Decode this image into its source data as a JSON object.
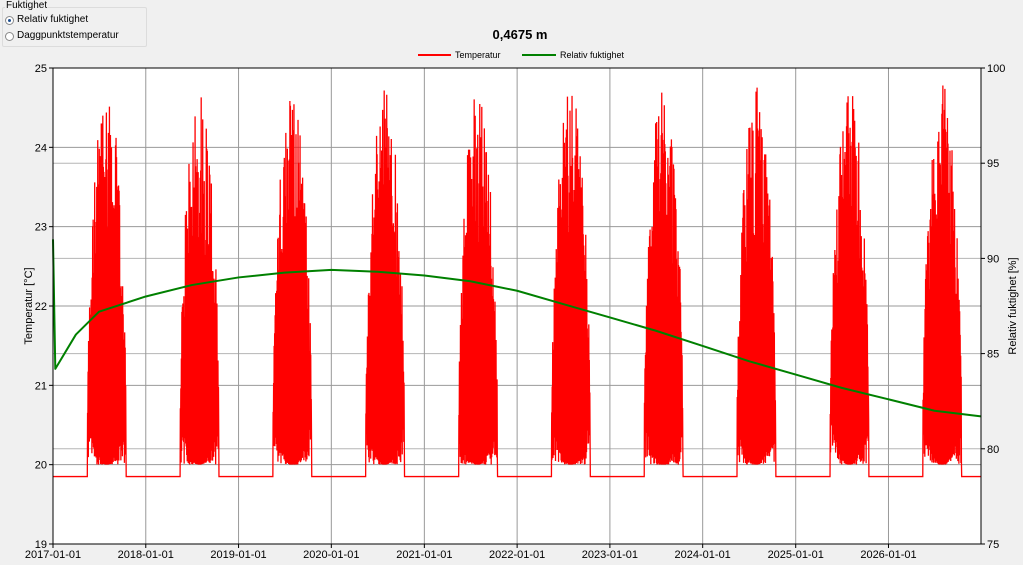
{
  "panel": {
    "group_title": "Fuktighet",
    "options": [
      {
        "label": "Relativ fuktighet",
        "selected": true
      },
      {
        "label": "Daggpunktstemperatur",
        "selected": false
      }
    ]
  },
  "chart_data": {
    "type": "line",
    "title": "0,4675 m",
    "legend": [
      "Temperatur",
      "Relativ fuktighet"
    ],
    "legend_placement": "top-center",
    "grid": true,
    "x_ticks": [
      "2017-01-01",
      "2018-01-01",
      "2019-01-01",
      "2020-01-01",
      "2021-01-01",
      "2022-01-01",
      "2023-01-01",
      "2024-01-01",
      "2025-01-01",
      "2026-01-01"
    ],
    "x_range": [
      "2017-01-01",
      "2026-12-31"
    ],
    "ylabel_left": "Temperatur [°C]",
    "ylabel_right": "Relativ fuktighet [%]",
    "ylim_left": [
      19,
      25
    ],
    "ylim_right": [
      75,
      100
    ],
    "y_ticks_left": [
      19,
      20,
      21,
      22,
      23,
      24,
      25
    ],
    "y_ticks_right": [
      75,
      80,
      85,
      90,
      95,
      100
    ],
    "colors": {
      "temperatur": "#ff0000",
      "fuktighet": "#008000"
    },
    "series": [
      {
        "name": "Temperatur",
        "axis": "left",
        "pattern": "Baseline about 19.85 °C outside summer; each year from about mid-May to mid-October rapid oscillations between about 20.0 and 24.8 °C",
        "baseline": 19.85,
        "summer_max": 24.8,
        "summer_window": [
          "05-15",
          "10-15"
        ]
      },
      {
        "name": "Relativ fuktighet",
        "axis": "right",
        "x": [
          "2017-01-01",
          "2017-01-10",
          "2017-04-01",
          "2017-07-01",
          "2018-01-01",
          "2018-07-01",
          "2019-01-01",
          "2019-07-01",
          "2020-01-01",
          "2020-07-01",
          "2021-01-01",
          "2021-07-01",
          "2022-01-01",
          "2022-07-01",
          "2023-01-01",
          "2023-07-01",
          "2024-01-01",
          "2024-07-01",
          "2025-01-01",
          "2025-07-01",
          "2026-01-01",
          "2026-07-01",
          "2026-12-31"
        ],
        "y": [
          91.0,
          84.2,
          86.0,
          87.2,
          88.0,
          88.6,
          89.0,
          89.25,
          89.4,
          89.3,
          89.1,
          88.8,
          88.3,
          87.6,
          86.9,
          86.2,
          85.4,
          84.6,
          83.9,
          83.2,
          82.6,
          82.0,
          81.7
        ]
      }
    ]
  }
}
